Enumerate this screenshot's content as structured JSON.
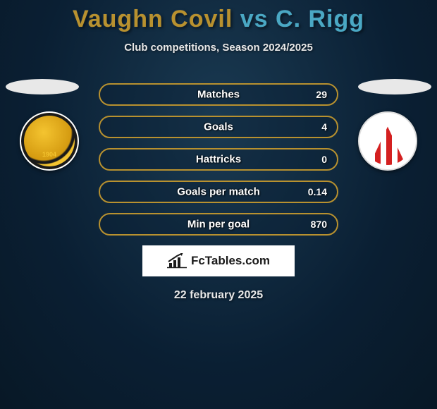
{
  "title": {
    "player1": "Vaughn Covil",
    "player1_color": "#b8912f",
    "vs": "vs",
    "vs_color": "#4aa8c4",
    "player2": "C. Rigg",
    "player2_color": "#4aa8c4"
  },
  "subtitle": "Club competitions, Season 2024/2025",
  "date": "22 february 2025",
  "colors": {
    "border_a": "#b8912f",
    "border_b": "#4aa8c4",
    "fill_a": "rgba(184,145,47,0.55)",
    "fill_b": "rgba(74,168,196,0.35)"
  },
  "stats": [
    {
      "label": "Matches",
      "value": "29",
      "left_pct": 0,
      "right_pct": 0,
      "border": "a"
    },
    {
      "label": "Goals",
      "value": "4",
      "left_pct": 0,
      "right_pct": 0,
      "border": "a"
    },
    {
      "label": "Hattricks",
      "value": "0",
      "left_pct": 0,
      "right_pct": 0,
      "border": "a"
    },
    {
      "label": "Goals per match",
      "value": "0.14",
      "left_pct": 0,
      "right_pct": 0,
      "border": "a"
    },
    {
      "label": "Min per goal",
      "value": "870",
      "left_pct": 0,
      "right_pct": 0,
      "border": "a"
    }
  ],
  "branding": "FcTables.com"
}
